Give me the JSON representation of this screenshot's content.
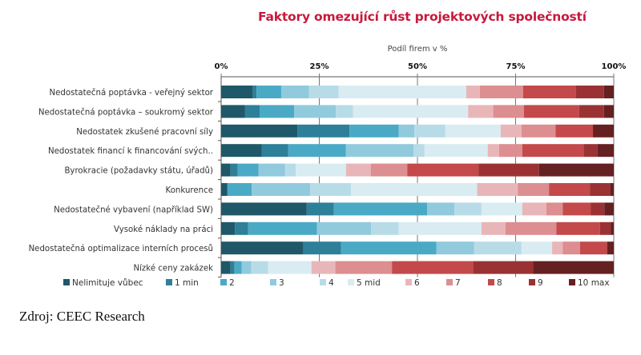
{
  "source": "Zdroj: CEEC Research",
  "chart_data": {
    "type": "bar",
    "orientation": "horizontal",
    "stacked": "100%",
    "title": "Faktory omezující růst projektových společností",
    "xlabel": "Podíl firem v %",
    "ylabel": "",
    "xlim": [
      0,
      100
    ],
    "x_ticks": [
      "0%",
      "25%",
      "50%",
      "75%",
      "100%"
    ],
    "x_tick_values": [
      0,
      25,
      50,
      75,
      100
    ],
    "x_axis_position": "top",
    "grid": false,
    "legend_position": "bottom",
    "categories": [
      "Nedostatečná poptávka - veřejný sektor",
      "Nedostatečná poptávka – soukromý sektor",
      "Nedostatek zkušené pracovní síly",
      "Nedostatek financí k financování svých..",
      "Byrokracie (požadavky státu, úřadů)",
      "Konkurence",
      "Nedostatečné vybavení (například SW)",
      "Vysoké náklady na práci",
      "Nedostatečná optimalizace interních procesů",
      "Nízké ceny zakázek"
    ],
    "series": [
      {
        "name": "Nelimituje vůbec",
        "color": "#1f5868",
        "values": [
          8.1,
          6.1,
          19.4,
          10.3,
          2.4,
          1.6,
          21.8,
          3.5,
          20.9,
          2.4
        ]
      },
      {
        "name": "1 min",
        "color": "#2e7f98",
        "values": [
          0.9,
          3.7,
          13.3,
          6.8,
          1.8,
          0.0,
          6.9,
          3.4,
          9.6,
          1.0
        ]
      },
      {
        "name": "2",
        "color": "#4aaac6",
        "values": [
          6.3,
          8.8,
          12.5,
          14.7,
          5.3,
          6.2,
          23.8,
          17.5,
          24.3,
          1.8
        ]
      },
      {
        "name": "3",
        "color": "#91cadd",
        "values": [
          7.1,
          10.6,
          4.0,
          17.2,
          6.8,
          14.9,
          6.9,
          13.8,
          9.6,
          2.5
        ]
      },
      {
        "name": "4",
        "color": "#b7dce8",
        "values": [
          7.5,
          4.4,
          7.9,
          2.8,
          2.7,
          10.4,
          6.9,
          7.0,
          12.1,
          4.3
        ]
      },
      {
        "name": "5 mid",
        "color": "#d9ecf2",
        "values": [
          32.5,
          29.3,
          14.1,
          16.1,
          12.8,
          32.1,
          10.4,
          21.1,
          7.8,
          11.0
        ]
      },
      {
        "name": "6",
        "color": "#e8b6b9",
        "values": [
          3.5,
          6.4,
          5.3,
          2.9,
          6.3,
          10.4,
          6.1,
          6.1,
          2.7,
          6.1
        ]
      },
      {
        "name": "7",
        "color": "#dc8e90",
        "values": [
          11.0,
          7.8,
          8.7,
          5.9,
          9.3,
          7.9,
          4.2,
          13.0,
          4.4,
          14.4
        ]
      },
      {
        "name": "8",
        "color": "#c4494b",
        "values": [
          13.5,
          14.1,
          9.5,
          15.6,
          18.2,
          10.4,
          7.1,
          11.1,
          6.9,
          20.7
        ]
      },
      {
        "name": "9",
        "color": "#9a3234",
        "values": [
          7.1,
          6.3,
          0.0,
          3.6,
          15.4,
          5.2,
          3.5,
          2.7,
          0.0,
          15.3
        ]
      },
      {
        "name": "10 max",
        "color": "#652022",
        "values": [
          2.5,
          2.5,
          5.3,
          4.1,
          19.0,
          0.9,
          2.4,
          0.8,
          1.7,
          20.5
        ]
      }
    ]
  }
}
